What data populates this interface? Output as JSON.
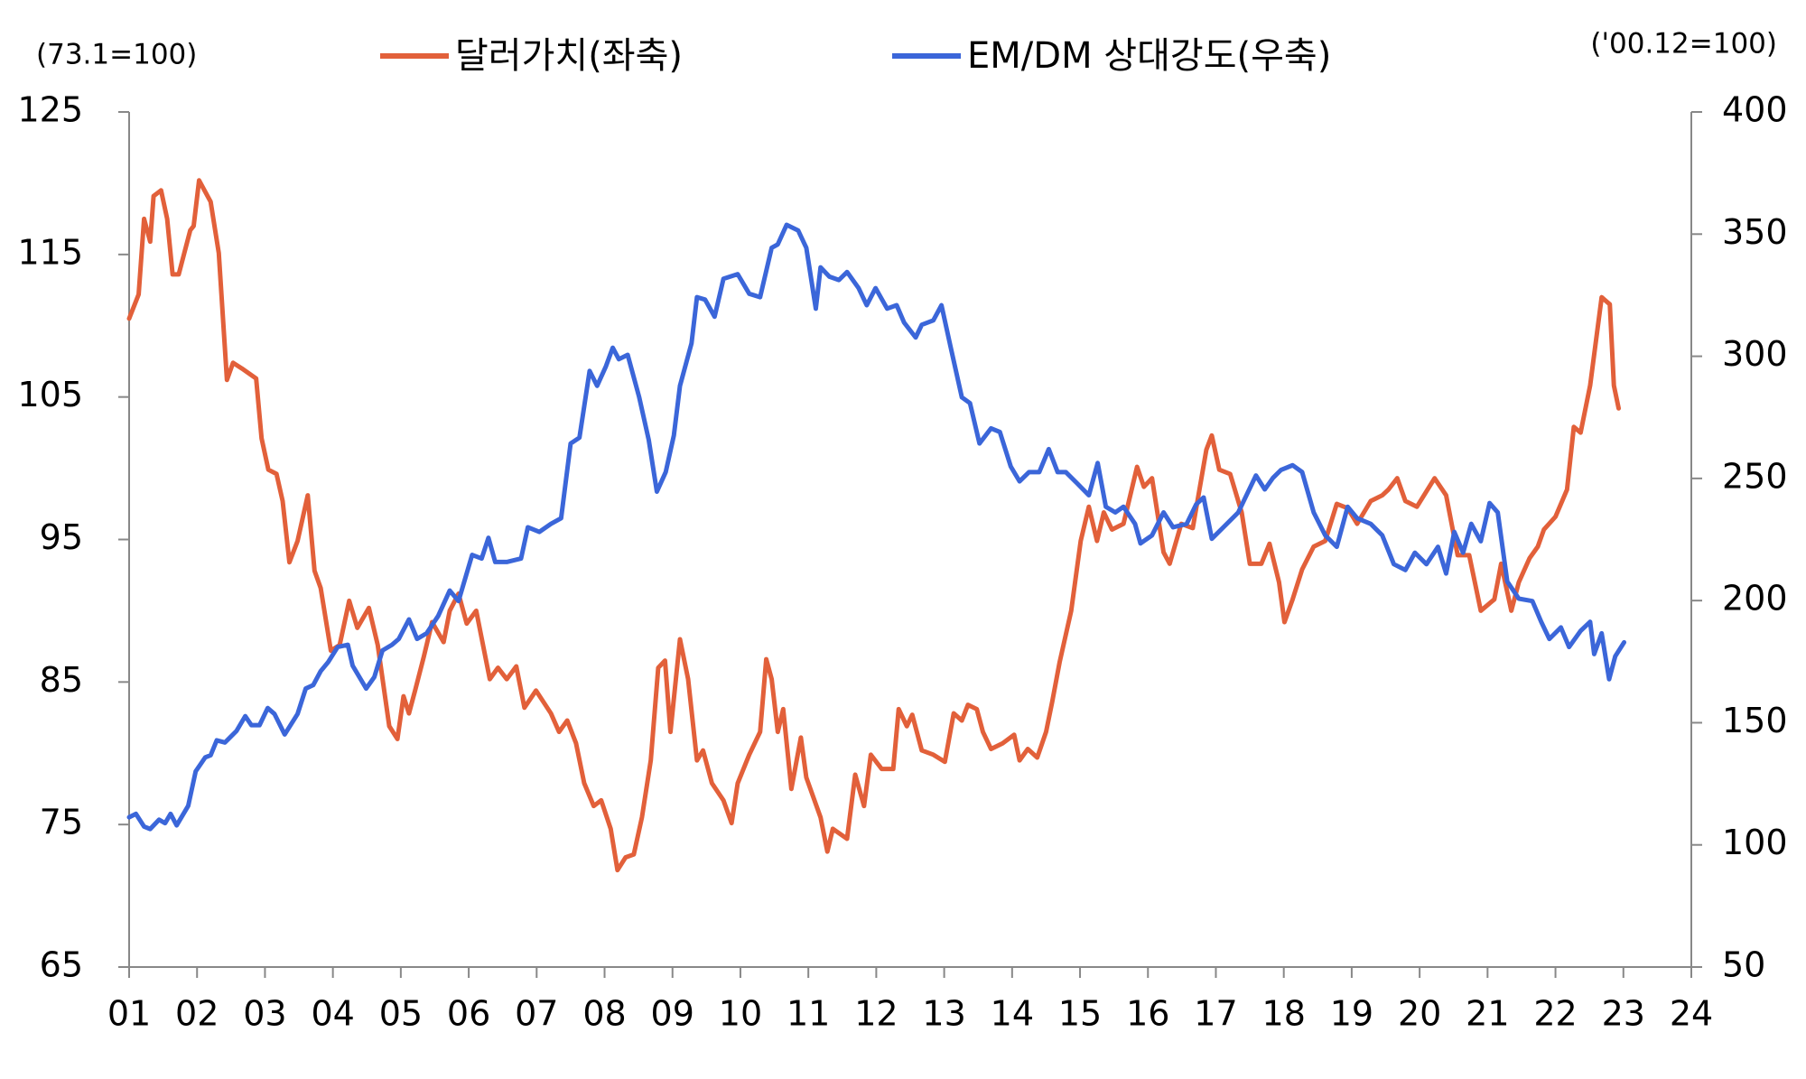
{
  "chart_data": {
    "type": "line",
    "left_unit": "(73.1=100)",
    "right_unit": "('00.12=100)",
    "xlim": [
      2001,
      2024
    ],
    "xticks": [
      {
        "value": 2001,
        "label": "01"
      },
      {
        "value": 2002,
        "label": "02"
      },
      {
        "value": 2003,
        "label": "03"
      },
      {
        "value": 2004,
        "label": "04"
      },
      {
        "value": 2005,
        "label": "05"
      },
      {
        "value": 2006,
        "label": "06"
      },
      {
        "value": 2007,
        "label": "07"
      },
      {
        "value": 2008,
        "label": "08"
      },
      {
        "value": 2009,
        "label": "09"
      },
      {
        "value": 2010,
        "label": "10"
      },
      {
        "value": 2011,
        "label": "11"
      },
      {
        "value": 2012,
        "label": "12"
      },
      {
        "value": 2013,
        "label": "13"
      },
      {
        "value": 2014,
        "label": "14"
      },
      {
        "value": 2015,
        "label": "15"
      },
      {
        "value": 2016,
        "label": "16"
      },
      {
        "value": 2017,
        "label": "17"
      },
      {
        "value": 2018,
        "label": "18"
      },
      {
        "value": 2019,
        "label": "19"
      },
      {
        "value": 2020,
        "label": "20"
      },
      {
        "value": 2021,
        "label": "21"
      },
      {
        "value": 2022,
        "label": "22"
      },
      {
        "value": 2023,
        "label": "23"
      },
      {
        "value": 2024,
        "label": "24"
      }
    ],
    "ylim": [
      65,
      125
    ],
    "yticks": [
      65,
      75,
      85,
      95,
      105,
      115,
      125
    ],
    "y2lim": [
      50,
      400
    ],
    "y2ticks": [
      50,
      100,
      150,
      200,
      250,
      300,
      350,
      400
    ],
    "series": [
      {
        "name": "달러가치(좌축)",
        "color": "#e2603a",
        "x": [
          2001.0,
          2001.14,
          2001.22,
          2001.31,
          2001.36,
          2001.47,
          2001.56,
          2001.64,
          2001.73,
          2001.9,
          2001.95,
          2002.03,
          2002.2,
          2002.32,
          2002.44,
          2002.53,
          2002.66,
          2002.87,
          2002.95,
          2003.05,
          2003.17,
          2003.26,
          2003.36,
          2003.48,
          2003.63,
          2003.73,
          2003.82,
          2003.97,
          2004.1,
          2004.24,
          2004.36,
          2004.53,
          2004.66,
          2004.83,
          2004.95,
          2005.04,
          2005.12,
          2005.21,
          2005.34,
          2005.46,
          2005.63,
          2005.72,
          2005.85,
          2005.97,
          2006.11,
          2006.31,
          2006.43,
          2006.56,
          2006.7,
          2006.82,
          2006.99,
          2007.21,
          2007.33,
          2007.45,
          2007.58,
          2007.7,
          2007.84,
          2007.95,
          2008.09,
          2008.19,
          2008.31,
          2008.43,
          2008.55,
          2008.68,
          2008.79,
          2008.89,
          2008.97,
          2009.11,
          2009.23,
          2009.36,
          2009.45,
          2009.58,
          2009.75,
          2009.87,
          2009.96,
          2010.13,
          2010.29,
          2010.38,
          2010.46,
          2010.55,
          2010.63,
          2010.75,
          2010.89,
          2010.97,
          2011.18,
          2011.28,
          2011.36,
          2011.57,
          2011.69,
          2011.82,
          2011.92,
          2012.08,
          2012.25,
          2012.33,
          2012.45,
          2012.53,
          2012.67,
          2012.84,
          2013.01,
          2013.14,
          2013.26,
          2013.35,
          2013.48,
          2013.57,
          2013.69,
          2013.86,
          2014.03,
          2014.11,
          2014.23,
          2014.37,
          2014.5,
          2014.59,
          2014.7,
          2014.87,
          2015.01,
          2015.13,
          2015.25,
          2015.35,
          2015.47,
          2015.64,
          2015.84,
          2015.94,
          2016.06,
          2016.23,
          2016.32,
          2016.49,
          2016.66,
          2016.86,
          2016.94,
          2017.05,
          2017.21,
          2017.38,
          2017.5,
          2017.67,
          2017.79,
          2017.93,
          2018.01,
          2018.13,
          2018.27,
          2018.44,
          2018.61,
          2018.78,
          2018.94,
          2019.08,
          2019.28,
          2019.45,
          2019.54,
          2019.67,
          2019.79,
          2019.96,
          2020.22,
          2020.39,
          2020.56,
          2020.73,
          2020.9,
          2021.1,
          2021.2,
          2021.35,
          2021.46,
          2021.62,
          2021.74,
          2021.83,
          2022.0,
          2022.17,
          2022.27,
          2022.37,
          2022.51,
          2022.68,
          2022.8,
          2022.86,
          2022.93
        ],
        "values": [
          110.5,
          112.2,
          117.5,
          115.9,
          119.1,
          119.5,
          117.5,
          113.6,
          113.6,
          116.7,
          117,
          120.2,
          118.7,
          115.1,
          106.2,
          107.4,
          107,
          106.3,
          102.1,
          99.9,
          99.6,
          97.7,
          93.4,
          94.9,
          98.1,
          92.8,
          91.6,
          87.2,
          87.6,
          90.7,
          88.8,
          90.2,
          87.6,
          81.9,
          81,
          84,
          82.8,
          84.4,
          86.8,
          89.2,
          87.8,
          90,
          91.2,
          89.1,
          90,
          85.2,
          86,
          85.2,
          86.1,
          83.2,
          84.4,
          82.8,
          81.5,
          82.3,
          80.7,
          77.9,
          76.3,
          76.7,
          74.7,
          71.8,
          72.7,
          72.9,
          75.5,
          79.5,
          86,
          86.5,
          81.5,
          88,
          85.2,
          79.5,
          80.2,
          77.9,
          76.7,
          75.1,
          77.9,
          79.9,
          81.5,
          86.6,
          85.2,
          81.5,
          83.1,
          77.5,
          81.1,
          78.3,
          75.5,
          73.1,
          74.7,
          74,
          78.5,
          76.3,
          79.9,
          78.9,
          78.9,
          83.1,
          81.9,
          82.7,
          80.2,
          79.9,
          79.4,
          82.8,
          82.3,
          83.4,
          83.1,
          81.5,
          80.3,
          80.7,
          81.3,
          79.5,
          80.3,
          79.7,
          81.5,
          83.6,
          86.4,
          90,
          94.9,
          97.3,
          94.9,
          96.9,
          95.7,
          96.1,
          100.1,
          98.7,
          99.3,
          94.1,
          93.3,
          96.1,
          95.8,
          101.3,
          102.3,
          99.9,
          99.6,
          96.9,
          93.3,
          93.3,
          94.7,
          92,
          89.2,
          90.8,
          92.9,
          94.5,
          94.9,
          97.5,
          97.2,
          96.1,
          97.7,
          98.1,
          98.5,
          99.3,
          97.7,
          97.3,
          99.3,
          98.1,
          93.9,
          93.9,
          90,
          90.8,
          93.3,
          90,
          92,
          93.7,
          94.5,
          95.7,
          96.6,
          98.5,
          102.9,
          102.5,
          105.8,
          112,
          111.5,
          105.8,
          104.2
        ]
      },
      {
        "name": "EM/DM 상대강도(우축)",
        "color": "#3b66d9",
        "axis": "y2",
        "x": [
          2001.0,
          2001.1,
          2001.22,
          2001.31,
          2001.44,
          2001.53,
          2001.61,
          2001.7,
          2001.87,
          2001.98,
          2002.12,
          2002.2,
          2002.29,
          2002.41,
          2002.58,
          2002.71,
          2002.8,
          2002.92,
          2003.04,
          2003.14,
          2003.29,
          2003.48,
          2003.6,
          2003.71,
          2003.82,
          2003.93,
          2004.07,
          2004.22,
          2004.29,
          2004.49,
          2004.61,
          2004.73,
          2004.87,
          2004.97,
          2005.12,
          2005.24,
          2005.38,
          2005.55,
          2005.72,
          2005.85,
          2006.05,
          2006.19,
          2006.29,
          2006.39,
          2006.56,
          2006.77,
          2006.87,
          2007.04,
          2007.21,
          2007.36,
          2007.5,
          2007.63,
          2007.78,
          2007.89,
          2008.02,
          2008.12,
          2008.21,
          2008.34,
          2008.51,
          2008.65,
          2008.77,
          2008.9,
          2009.02,
          2009.11,
          2009.28,
          2009.36,
          2009.48,
          2009.62,
          2009.75,
          2009.96,
          2010.13,
          2010.29,
          2010.46,
          2010.55,
          2010.68,
          2010.85,
          2010.97,
          2011.11,
          2011.18,
          2011.31,
          2011.45,
          2011.57,
          2011.74,
          2011.86,
          2011.99,
          2012.16,
          2012.3,
          2012.41,
          2012.58,
          2012.67,
          2012.84,
          2012.96,
          2013.09,
          2013.26,
          2013.38,
          2013.52,
          2013.69,
          2013.82,
          2013.98,
          2014.11,
          2014.25,
          2014.4,
          2014.54,
          2014.67,
          2014.79,
          2014.96,
          2015.13,
          2015.26,
          2015.38,
          2015.52,
          2015.64,
          2015.81,
          2015.89,
          2016.06,
          2016.23,
          2016.37,
          2016.57,
          2016.71,
          2016.82,
          2016.94,
          2017.11,
          2017.33,
          2017.45,
          2017.59,
          2017.72,
          2017.84,
          2017.96,
          2018.13,
          2018.27,
          2018.44,
          2018.61,
          2018.78,
          2018.94,
          2019.08,
          2019.28,
          2019.45,
          2019.62,
          2019.79,
          2019.93,
          2020.1,
          2020.27,
          2020.39,
          2020.51,
          2020.64,
          2020.76,
          2020.9,
          2021.03,
          2021.15,
          2021.29,
          2021.46,
          2021.66,
          2021.79,
          2021.91,
          2022.08,
          2022.2,
          2022.37,
          2022.51,
          2022.57,
          2022.68,
          2022.79,
          2022.88,
          2023.01
        ],
        "values": [
          111.3,
          112.7,
          107.5,
          106.5,
          110.3,
          108.9,
          112.7,
          108,
          116,
          130.1,
          135.8,
          136.7,
          142.8,
          141.9,
          146.6,
          152.7,
          149,
          149,
          156,
          153.6,
          145.2,
          153.6,
          164,
          165.4,
          171.1,
          174.8,
          181,
          181.9,
          173.4,
          164,
          168.7,
          179.6,
          181.9,
          184.3,
          192.3,
          184.3,
          186.6,
          193.7,
          204.1,
          199.8,
          218.7,
          217.2,
          225.7,
          215.8,
          215.8,
          217.2,
          230,
          228.1,
          231.4,
          233.7,
          264.3,
          266.7,
          294,
          287.9,
          295.9,
          303.5,
          298.8,
          300.6,
          283.2,
          265.8,
          244.6,
          252.6,
          267.6,
          287.9,
          305.3,
          324.2,
          323.2,
          316.2,
          331.7,
          333.6,
          325.6,
          324.2,
          344.4,
          345.8,
          353.8,
          351.5,
          344.4,
          319.5,
          336.4,
          332.6,
          331.2,
          334.5,
          327.9,
          320.9,
          327.9,
          319.5,
          320.9,
          313.8,
          307.7,
          312.9,
          314.7,
          320.9,
          304.4,
          283.2,
          280.8,
          264.3,
          270.5,
          269,
          254.9,
          248.8,
          252.6,
          252.6,
          262,
          252.6,
          252.6,
          247.9,
          243.1,
          256.3,
          238.4,
          236.1,
          238.4,
          231.4,
          223.4,
          226.7,
          236.1,
          230,
          231.4,
          239.4,
          242.2,
          225.3,
          230,
          236.1,
          243.1,
          251.2,
          245.5,
          250.2,
          253.5,
          255.4,
          252.6,
          236.1,
          226.7,
          222,
          238.4,
          233.7,
          231.4,
          226.7,
          214.9,
          212.5,
          219.6,
          214.9,
          222,
          211.1,
          228.1,
          219.6,
          231.4,
          224.3,
          239.9,
          236.1,
          207.8,
          200.8,
          199.8,
          191.3,
          184.3,
          189,
          181,
          187.6,
          191.3,
          178.1,
          186.6,
          167.8,
          177.2,
          182.9
        ]
      }
    ]
  }
}
